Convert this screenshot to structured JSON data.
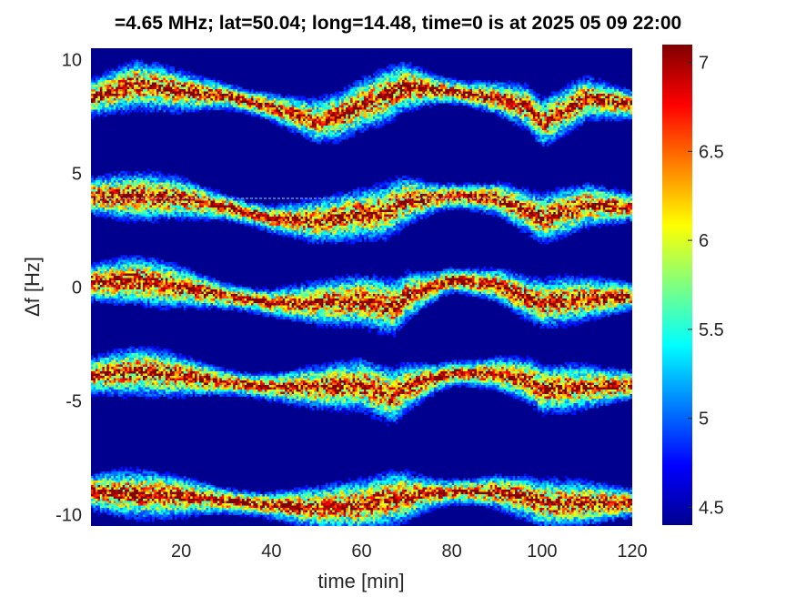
{
  "chart_data": {
    "type": "heatmap",
    "title": "=4.65 MHz;  lat=50.04; long=14.48, time=0 is at 2025 05 09 22:00",
    "xlabel": "time [min]",
    "ylabel": "Δf [Hz]",
    "xlim": [
      0,
      120
    ],
    "ylim": [
      -10.5,
      10.5
    ],
    "xticks": [
      20,
      40,
      60,
      80,
      100,
      120
    ],
    "yticks": [
      10,
      5,
      0,
      -5,
      -10
    ],
    "clim": [
      4.4,
      7.1
    ],
    "colorbar_ticks": [
      7,
      6.5,
      6,
      5.5,
      5,
      4.5
    ],
    "colormap": "jet",
    "background_color": "#00008f",
    "reference_line_y": 3.9,
    "traces": [
      {
        "x": [
          0,
          10,
          20,
          30,
          40,
          50,
          55,
          60,
          70,
          80,
          90,
          97,
          100,
          110,
          120
        ],
        "y": [
          8.3,
          8.9,
          8.6,
          8.4,
          7.9,
          7.3,
          7.5,
          8.0,
          8.8,
          8.6,
          8.3,
          7.9,
          7.2,
          8.3,
          8.0
        ]
      },
      {
        "x": [
          0,
          10,
          20,
          30,
          40,
          50,
          60,
          65,
          70,
          80,
          90,
          97,
          100,
          110,
          120
        ],
        "y": [
          4.0,
          4.0,
          3.9,
          3.5,
          3.0,
          2.9,
          3.2,
          3.3,
          3.8,
          4.0,
          3.9,
          3.3,
          3.0,
          3.6,
          3.5
        ]
      },
      {
        "x": [
          0,
          10,
          20,
          30,
          40,
          50,
          60,
          67,
          70,
          80,
          90,
          97,
          100,
          110,
          120
        ],
        "y": [
          0.2,
          0.3,
          0.0,
          -0.4,
          -0.7,
          -0.7,
          -0.6,
          -0.9,
          -0.4,
          0.3,
          0.1,
          -0.5,
          -0.7,
          -0.5,
          -0.4
        ]
      },
      {
        "x": [
          0,
          10,
          20,
          30,
          40,
          50,
          60,
          67,
          70,
          80,
          90,
          97,
          100,
          110,
          120
        ],
        "y": [
          -3.9,
          -3.7,
          -3.9,
          -4.2,
          -4.4,
          -4.4,
          -4.3,
          -4.8,
          -4.4,
          -3.8,
          -3.8,
          -4.1,
          -4.5,
          -4.4,
          -4.3
        ]
      },
      {
        "x": [
          0,
          10,
          20,
          30,
          40,
          50,
          60,
          67,
          70,
          80,
          90,
          97,
          100,
          110,
          120
        ],
        "y": [
          -9.0,
          -9.1,
          -9.2,
          -9.4,
          -9.6,
          -9.7,
          -9.6,
          -9.3,
          -9.2,
          -9.0,
          -9.0,
          -9.3,
          -9.5,
          -9.5,
          -9.5
        ]
      }
    ]
  }
}
